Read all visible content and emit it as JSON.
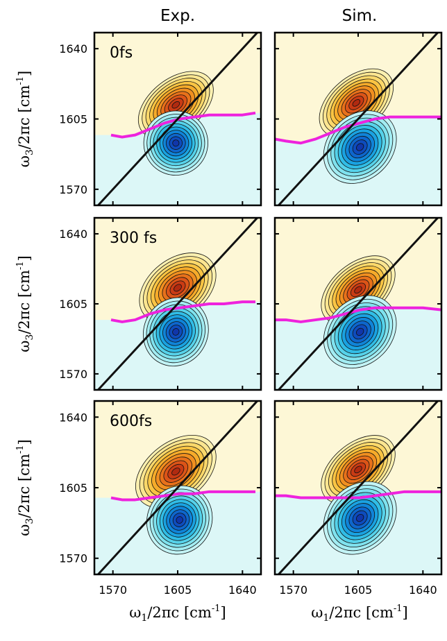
{
  "chart_data": {
    "type": "heatmap",
    "column_titles": [
      "Exp.",
      "Sim."
    ],
    "row_labels": [
      "0fs",
      "300 fs",
      "600fs"
    ],
    "xlabel": {
      "base": "ω",
      "sub": "1",
      "rest": "/2πc [cm",
      "sup": "-1",
      "close": "]"
    },
    "ylabel": {
      "base": "ω",
      "sub": "3",
      "rest": "/2πc [cm",
      "sup": "-1",
      "close": "]"
    },
    "x_ticks": [
      1570,
      1605,
      1640
    ],
    "y_ticks": [
      1570,
      1605,
      1640
    ],
    "xlim": [
      1560,
      1650
    ],
    "ylim": [
      1562,
      1648
    ],
    "contour_levels": 10,
    "colors": {
      "positive_base": "#fdf7d6",
      "negative_base": "#dcf7f7",
      "positive_ramp": [
        "#fbf0b0",
        "#fbe590",
        "#fbd86a",
        "#f9c443",
        "#f6ab2a",
        "#f18f20",
        "#e8711b",
        "#dc5418",
        "#c93b14",
        "#b02a10"
      ],
      "negative_ramp": [
        "#c2f3f5",
        "#a2ecf2",
        "#7fe2ee",
        "#56d2ea",
        "#31bde6",
        "#1aa2e1",
        "#1084d8",
        "#0e66cc",
        "#0e4cbd",
        "#1036aa"
      ],
      "diagonal": "#111111",
      "node_line": "#ee22dd"
    },
    "panels": [
      {
        "row": 0,
        "col": 0,
        "pos": {
          "x": 1604,
          "y": 1612,
          "sx": 16,
          "sy": 9,
          "theta": 38
        },
        "neg": {
          "x": 1604,
          "y": 1593,
          "sx": 12,
          "sy": 11,
          "theta": 62
        },
        "node_line": [
          [
            1569,
            1597
          ],
          [
            1575,
            1596
          ],
          [
            1582,
            1597
          ],
          [
            1590,
            1600
          ],
          [
            1598,
            1603
          ],
          [
            1606,
            1605
          ],
          [
            1614,
            1606
          ],
          [
            1622,
            1607
          ],
          [
            1630,
            1607
          ],
          [
            1640,
            1607
          ],
          [
            1647,
            1608
          ]
        ]
      },
      {
        "row": 0,
        "col": 1,
        "pos": {
          "x": 1604,
          "y": 1613,
          "sx": 16,
          "sy": 9,
          "theta": 40
        },
        "neg": {
          "x": 1606,
          "y": 1591,
          "sx": 15,
          "sy": 11,
          "theta": 45
        },
        "node_line": [
          [
            1560,
            1595
          ],
          [
            1566,
            1594
          ],
          [
            1574,
            1593
          ],
          [
            1582,
            1595
          ],
          [
            1590,
            1598
          ],
          [
            1598,
            1601
          ],
          [
            1606,
            1603
          ],
          [
            1614,
            1605
          ],
          [
            1622,
            1606
          ],
          [
            1630,
            1606
          ],
          [
            1640,
            1606
          ],
          [
            1650,
            1606
          ]
        ]
      },
      {
        "row": 1,
        "col": 0,
        "pos": {
          "x": 1605,
          "y": 1613,
          "sx": 16,
          "sy": 10,
          "theta": 38
        },
        "neg": {
          "x": 1604,
          "y": 1591,
          "sx": 13,
          "sy": 11,
          "theta": 62
        },
        "node_line": [
          [
            1569,
            1597
          ],
          [
            1575,
            1596
          ],
          [
            1582,
            1597
          ],
          [
            1590,
            1600
          ],
          [
            1598,
            1602
          ],
          [
            1606,
            1603
          ],
          [
            1614,
            1604
          ],
          [
            1622,
            1605
          ],
          [
            1630,
            1605
          ],
          [
            1640,
            1606
          ],
          [
            1647,
            1606
          ]
        ]
      },
      {
        "row": 1,
        "col": 1,
        "pos": {
          "x": 1605,
          "y": 1612,
          "sx": 16,
          "sy": 9,
          "theta": 40
        },
        "neg": {
          "x": 1606,
          "y": 1591,
          "sx": 15,
          "sy": 11,
          "theta": 45
        },
        "node_line": [
          [
            1560,
            1597
          ],
          [
            1566,
            1597
          ],
          [
            1574,
            1596
          ],
          [
            1582,
            1597
          ],
          [
            1590,
            1598
          ],
          [
            1598,
            1600
          ],
          [
            1606,
            1602
          ],
          [
            1614,
            1603
          ],
          [
            1622,
            1603
          ],
          [
            1630,
            1603
          ],
          [
            1640,
            1603
          ],
          [
            1650,
            1602
          ]
        ]
      },
      {
        "row": 2,
        "col": 0,
        "pos": {
          "x": 1604,
          "y": 1613,
          "sx": 17,
          "sy": 10,
          "theta": 38
        },
        "neg": {
          "x": 1606,
          "y": 1589,
          "sx": 13,
          "sy": 11,
          "theta": 62
        },
        "node_line": [
          [
            1569,
            1600
          ],
          [
            1575,
            1599
          ],
          [
            1582,
            1599
          ],
          [
            1590,
            1600
          ],
          [
            1598,
            1601
          ],
          [
            1606,
            1602
          ],
          [
            1614,
            1602
          ],
          [
            1622,
            1603
          ],
          [
            1630,
            1603
          ],
          [
            1640,
            1603
          ],
          [
            1647,
            1603
          ]
        ]
      },
      {
        "row": 2,
        "col": 1,
        "pos": {
          "x": 1605,
          "y": 1614,
          "sx": 16,
          "sy": 9,
          "theta": 40
        },
        "neg": {
          "x": 1606,
          "y": 1590,
          "sx": 15,
          "sy": 11,
          "theta": 45
        },
        "node_line": [
          [
            1560,
            1601
          ],
          [
            1566,
            1601
          ],
          [
            1574,
            1600
          ],
          [
            1582,
            1600
          ],
          [
            1590,
            1600
          ],
          [
            1598,
            1600
          ],
          [
            1606,
            1600
          ],
          [
            1614,
            1601
          ],
          [
            1622,
            1602
          ],
          [
            1630,
            1603
          ],
          [
            1640,
            1603
          ],
          [
            1650,
            1603
          ]
        ]
      }
    ]
  }
}
